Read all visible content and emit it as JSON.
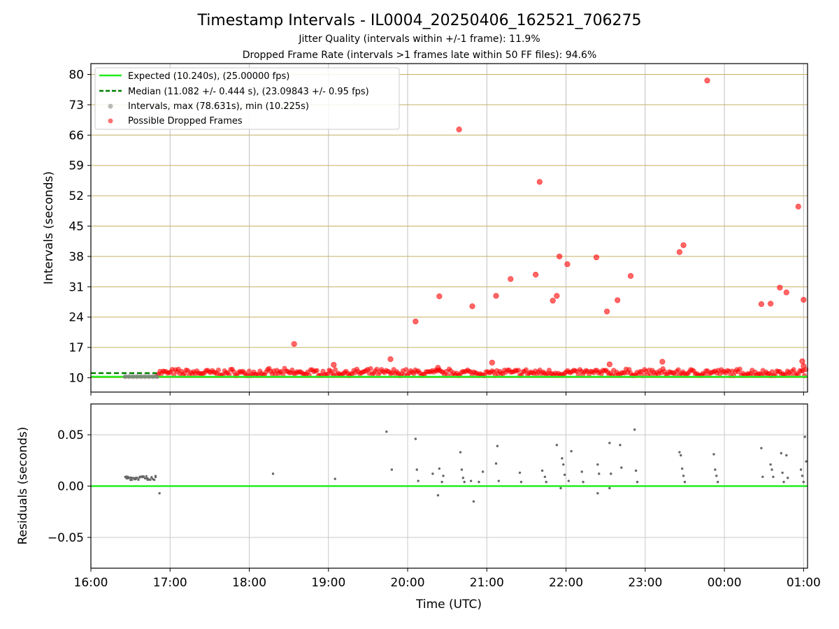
{
  "chart_data": [
    {
      "type": "scatter",
      "title": "Timestamp Intervals - IL0004_20250406_162521_706275",
      "subtitle_1": "Jitter Quality (intervals within +/-1 frame): 11.9%",
      "subtitle_2": "Dropped Frame Rate (intervals >1 frames late within 50 FF files): 94.6%",
      "xlabel": "",
      "ylabel": "Intervals (seconds)",
      "xlim": [
        "16:00",
        "01:03"
      ],
      "ylim": [
        6.7,
        82.5
      ],
      "yticks": [
        10,
        17,
        24,
        31,
        38,
        45,
        52,
        59,
        66,
        73,
        80
      ],
      "ytick_labels": [
        "10",
        "17",
        "24",
        "31",
        "38",
        "45",
        "52",
        "59",
        "66",
        "73",
        "80"
      ],
      "grid": "horizontal",
      "legend_position": "top-left",
      "legend": [
        "Expected (10.240s), (25.00000 fps)",
        "Median (11.082 +/- 0.444 s), (23.09843 +/- 0.95 fps)",
        "Intervals, max (78.631s), min (10.225s)",
        "Possible Dropped Frames"
      ],
      "expected_interval": 10.24,
      "median_interval": 11.082,
      "colors": {
        "expected": "#22ee22",
        "median": "#008000",
        "intervals": "#808080",
        "dropped": "#ff0000",
        "grid": "#c8b060"
      },
      "normal_intervals": [
        {
          "x": "16:26",
          "y": 10.25
        },
        {
          "x": "16:29",
          "y": 10.25
        },
        {
          "x": "16:32",
          "y": 10.25
        },
        {
          "x": "16:35",
          "y": 10.25
        },
        {
          "x": "16:38",
          "y": 10.25
        },
        {
          "x": "16:41",
          "y": 10.25
        },
        {
          "x": "16:44",
          "y": 10.25
        },
        {
          "x": "16:47",
          "y": 10.25
        },
        {
          "x": "16:50",
          "y": 10.25
        }
      ],
      "dropped_frames": [
        {
          "x": "18:34",
          "y": 17.8
        },
        {
          "x": "19:04",
          "y": 13.0
        },
        {
          "x": "19:47",
          "y": 14.3
        },
        {
          "x": "20:06",
          "y": 23.0
        },
        {
          "x": "20:24",
          "y": 28.8
        },
        {
          "x": "20:23",
          "y": 12.3
        },
        {
          "x": "20:39",
          "y": 67.3
        },
        {
          "x": "20:49",
          "y": 26.5
        },
        {
          "x": "21:04",
          "y": 13.5
        },
        {
          "x": "21:07",
          "y": 28.9
        },
        {
          "x": "21:18",
          "y": 32.8
        },
        {
          "x": "21:37",
          "y": 33.8
        },
        {
          "x": "21:40",
          "y": 55.2
        },
        {
          "x": "21:50",
          "y": 27.8
        },
        {
          "x": "21:53",
          "y": 28.9
        },
        {
          "x": "21:55",
          "y": 38.0
        },
        {
          "x": "22:01",
          "y": 36.2
        },
        {
          "x": "22:23",
          "y": 37.8
        },
        {
          "x": "22:31",
          "y": 25.3
        },
        {
          "x": "22:33",
          "y": 13.1
        },
        {
          "x": "22:39",
          "y": 27.9
        },
        {
          "x": "22:49",
          "y": 33.5
        },
        {
          "x": "23:13",
          "y": 13.7
        },
        {
          "x": "23:26",
          "y": 39.0
        },
        {
          "x": "23:29",
          "y": 40.6
        },
        {
          "x": "23:47",
          "y": 78.6
        },
        {
          "x": "00:28",
          "y": 27.0
        },
        {
          "x": "00:35",
          "y": 27.1
        },
        {
          "x": "00:42",
          "y": 30.8
        },
        {
          "x": "00:47",
          "y": 29.7
        },
        {
          "x": "00:56",
          "y": 49.5
        },
        {
          "x": "00:59",
          "y": 13.8
        },
        {
          "x": "01:00",
          "y": 28.0
        },
        {
          "x": "01:00",
          "y": 12.7
        }
      ],
      "dense_band_y": [
        10.5,
        12.2
      ]
    },
    {
      "type": "scatter",
      "xlabel": "Time (UTC)",
      "ylabel": "Residuals (seconds)",
      "xlim": [
        "16:00",
        "01:03"
      ],
      "ylim": [
        -0.08,
        0.08
      ],
      "yticks": [
        -0.05,
        0.0,
        0.05
      ],
      "ytick_labels": [
        "−0.05",
        "0.00",
        "0.05"
      ],
      "xticks": [
        "16:00",
        "17:00",
        "18:00",
        "19:00",
        "20:00",
        "21:00",
        "22:00",
        "23:00",
        "00:00",
        "01:00"
      ],
      "grid": "both",
      "zero_line_color": "#22ee22",
      "point_color": "#666666",
      "residuals": [
        {
          "x": "16:52",
          "y": -0.007
        },
        {
          "x": "18:18",
          "y": 0.012
        },
        {
          "x": "19:05",
          "y": 0.007
        },
        {
          "x": "19:44",
          "y": 0.053
        },
        {
          "x": "19:48",
          "y": 0.016
        },
        {
          "x": "20:06",
          "y": 0.046
        },
        {
          "x": "20:07",
          "y": 0.016
        },
        {
          "x": "20:08",
          "y": 0.005
        },
        {
          "x": "20:19",
          "y": 0.012
        },
        {
          "x": "20:23",
          "y": -0.009
        },
        {
          "x": "20:24",
          "y": 0.017
        },
        {
          "x": "20:26",
          "y": 0.004
        },
        {
          "x": "20:27",
          "y": 0.01
        },
        {
          "x": "20:40",
          "y": 0.033
        },
        {
          "x": "20:41",
          "y": 0.016
        },
        {
          "x": "20:42",
          "y": 0.008
        },
        {
          "x": "20:43",
          "y": 0.004
        },
        {
          "x": "20:50",
          "y": -0.015
        },
        {
          "x": "20:48",
          "y": 0.005
        },
        {
          "x": "20:54",
          "y": 0.004
        },
        {
          "x": "20:57",
          "y": 0.014
        },
        {
          "x": "21:08",
          "y": 0.039
        },
        {
          "x": "21:07",
          "y": 0.022
        },
        {
          "x": "21:09",
          "y": 0.005
        },
        {
          "x": "21:25",
          "y": 0.013
        },
        {
          "x": "21:26",
          "y": 0.004
        },
        {
          "x": "21:42",
          "y": 0.015
        },
        {
          "x": "21:44",
          "y": 0.009
        },
        {
          "x": "21:45",
          "y": 0.004
        },
        {
          "x": "21:53",
          "y": 0.04
        },
        {
          "x": "21:57",
          "y": 0.027
        },
        {
          "x": "21:58",
          "y": 0.021
        },
        {
          "x": "21:56",
          "y": -0.002
        },
        {
          "x": "21:59",
          "y": 0.011
        },
        {
          "x": "22:02",
          "y": 0.005
        },
        {
          "x": "22:04",
          "y": 0.034
        },
        {
          "x": "22:12",
          "y": 0.014
        },
        {
          "x": "22:13",
          "y": 0.004
        },
        {
          "x": "22:24",
          "y": 0.021
        },
        {
          "x": "22:25",
          "y": 0.012
        },
        {
          "x": "22:24",
          "y": -0.007
        },
        {
          "x": "22:33",
          "y": 0.042
        },
        {
          "x": "22:34",
          "y": 0.012
        },
        {
          "x": "22:33",
          "y": -0.002
        },
        {
          "x": "22:41",
          "y": 0.04
        },
        {
          "x": "22:42",
          "y": 0.018
        },
        {
          "x": "22:52",
          "y": 0.055
        },
        {
          "x": "22:53",
          "y": 0.015
        },
        {
          "x": "22:54",
          "y": 0.004
        },
        {
          "x": "23:26",
          "y": 0.033
        },
        {
          "x": "23:27",
          "y": 0.03
        },
        {
          "x": "23:28",
          "y": 0.017
        },
        {
          "x": "23:29",
          "y": 0.01
        },
        {
          "x": "23:30",
          "y": 0.004
        },
        {
          "x": "23:52",
          "y": 0.031
        },
        {
          "x": "23:53",
          "y": 0.016
        },
        {
          "x": "23:54",
          "y": 0.01
        },
        {
          "x": "23:55",
          "y": 0.004
        },
        {
          "x": "00:28",
          "y": 0.037
        },
        {
          "x": "00:29",
          "y": 0.009
        },
        {
          "x": "00:35",
          "y": 0.021
        },
        {
          "x": "00:36",
          "y": 0.016
        },
        {
          "x": "00:37",
          "y": 0.009
        },
        {
          "x": "00:43",
          "y": 0.032
        },
        {
          "x": "00:44",
          "y": 0.013
        },
        {
          "x": "00:45",
          "y": 0.004
        },
        {
          "x": "00:47",
          "y": 0.03
        },
        {
          "x": "00:48",
          "y": 0.008
        },
        {
          "x": "00:58",
          "y": 0.016
        },
        {
          "x": "00:59",
          "y": 0.01
        },
        {
          "x": "01:00",
          "y": 0.004
        },
        {
          "x": "01:01",
          "y": 0.048
        },
        {
          "x": "01:02",
          "y": 0.024
        }
      ],
      "early_cluster": {
        "x_start": "16:26",
        "x_end": "16:50",
        "y": 0.008
      }
    }
  ]
}
